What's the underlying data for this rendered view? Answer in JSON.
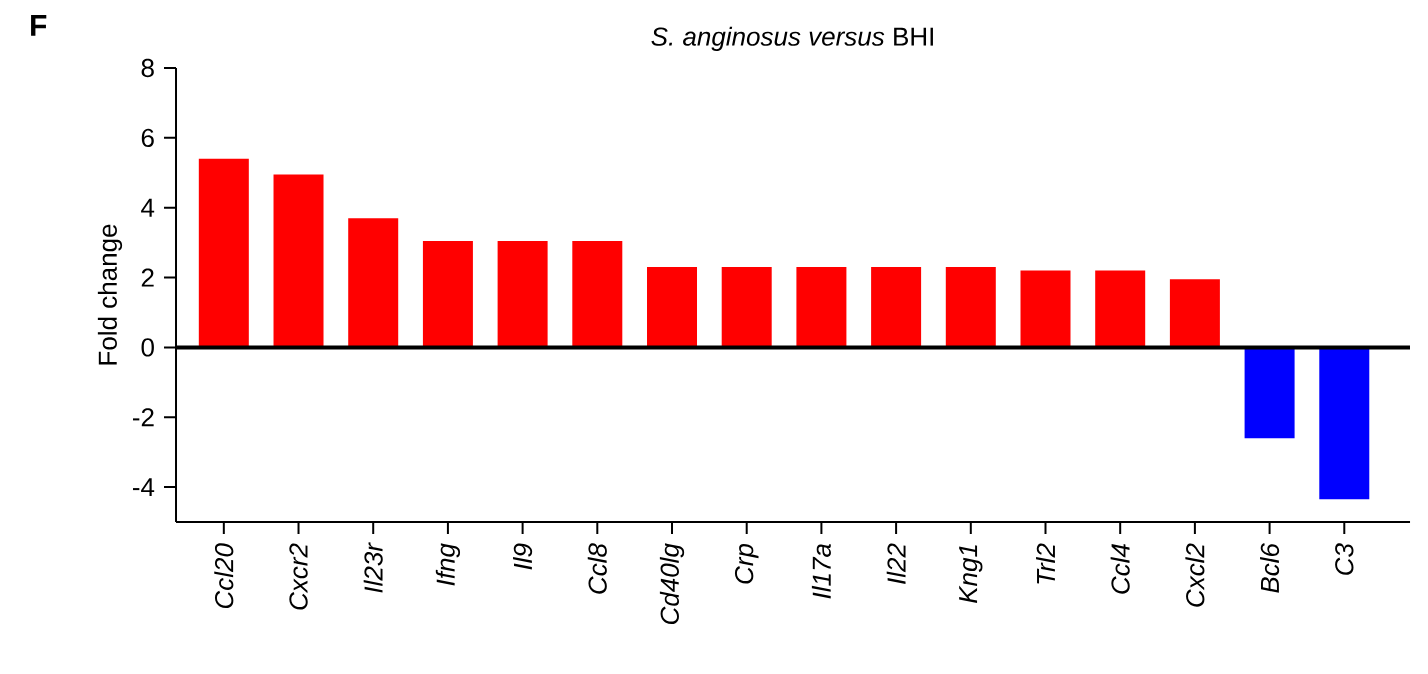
{
  "chart_data": {
    "type": "bar",
    "title": "*S. anginosus versus* BHI",
    "ylabel": "Fold change",
    "annotations": [
      "F"
    ],
    "categories": [
      "Ccl20",
      "Cxcr2",
      "Il23r",
      "Ifng",
      "Il9",
      "Ccl8",
      "Cd40lg",
      "Crp",
      "Il17a",
      "Il22",
      "Kng1",
      "Trl2",
      "Ccl4",
      "Cxcl2",
      "Bcl6",
      "C3"
    ],
    "values": [
      5.4,
      4.95,
      3.7,
      3.05,
      3.05,
      3.05,
      2.3,
      2.3,
      2.3,
      2.3,
      2.3,
      2.2,
      2.2,
      1.95,
      -2.6,
      -4.35
    ],
    "colors": [
      "#ff0000",
      "#ff0000",
      "#ff0000",
      "#ff0000",
      "#ff0000",
      "#ff0000",
      "#ff0000",
      "#ff0000",
      "#ff0000",
      "#ff0000",
      "#ff0000",
      "#ff0000",
      "#ff0000",
      "#ff0000",
      "#0000ff",
      "#0000ff"
    ],
    "ylim": [
      -5,
      8
    ],
    "yticks": [
      -4,
      -2,
      0,
      2,
      4,
      6,
      8
    ],
    "ref_lines": [
      {
        "axis": "y",
        "value": 0
      }
    ]
  }
}
